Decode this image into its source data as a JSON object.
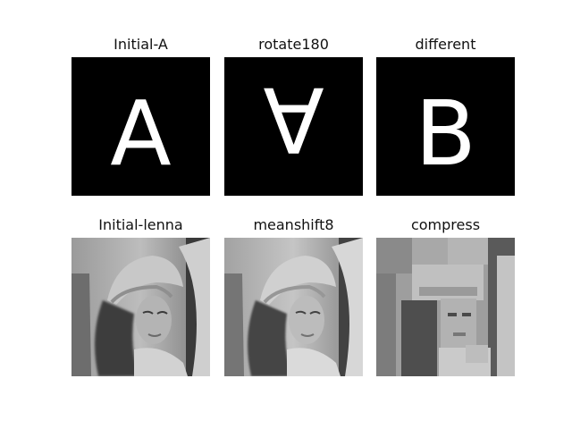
{
  "figure": {
    "panels": [
      {
        "id": "a-original",
        "title": "Initial-A",
        "kind": "letter",
        "letter": "A",
        "rotate": 0
      },
      {
        "id": "a-rotated",
        "title": "rotate180",
        "kind": "letter",
        "letter": "A",
        "rotate": 180
      },
      {
        "id": "b-letter",
        "title": "different",
        "kind": "letter",
        "letter": "B",
        "rotate": 0
      },
      {
        "id": "lenna-original",
        "title": "Initial-lenna",
        "kind": "photo",
        "variant": "original"
      },
      {
        "id": "lenna-meanshift",
        "title": "meanshift8",
        "kind": "photo",
        "variant": "shifted"
      },
      {
        "id": "lenna-compress",
        "title": "compress",
        "kind": "photo",
        "variant": "compressed"
      }
    ]
  }
}
